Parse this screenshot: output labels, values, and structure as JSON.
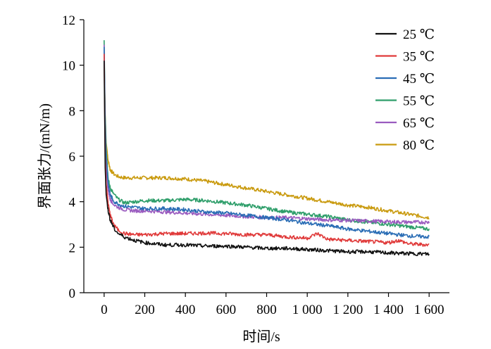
{
  "chart_data": {
    "type": "line",
    "title": "",
    "xlabel": "时间/s",
    "ylabel": "界面张力/(mN/m)",
    "xlim": [
      -100,
      1700
    ],
    "ylim": [
      0,
      12
    ],
    "x_ticks": [
      0,
      200,
      400,
      600,
      800,
      1000,
      1200,
      1400,
      1600
    ],
    "x_tick_labels": [
      "0",
      "200",
      "400",
      "600",
      "800",
      "1 000",
      "1 200",
      "1 400",
      "1 600"
    ],
    "y_ticks": [
      0,
      2,
      4,
      6,
      8,
      10,
      12
    ],
    "y_tick_labels": [
      "0",
      "2",
      "4",
      "6",
      "8",
      "10",
      "12"
    ],
    "grid": false,
    "legend_position": "top-right",
    "series": [
      {
        "name": "25 ℃",
        "color": "#111111",
        "x": [
          0,
          5,
          10,
          20,
          30,
          50,
          70,
          100,
          150,
          200,
          300,
          400,
          500,
          600,
          700,
          800,
          900,
          1000,
          1100,
          1200,
          1300,
          1400,
          1500,
          1600
        ],
        "y": [
          10.2,
          5.5,
          4.3,
          3.6,
          3.2,
          2.8,
          2.6,
          2.45,
          2.3,
          2.2,
          2.1,
          2.1,
          2.05,
          2.05,
          2.0,
          1.95,
          1.95,
          1.9,
          1.85,
          1.8,
          1.8,
          1.75,
          1.72,
          1.7
        ]
      },
      {
        "name": "35 ℃",
        "color": "#e03a3a",
        "x": [
          0,
          5,
          10,
          20,
          30,
          50,
          70,
          100,
          150,
          200,
          300,
          400,
          500,
          600,
          700,
          800,
          900,
          1000,
          1050,
          1100,
          1200,
          1300,
          1400,
          1450,
          1500,
          1600
        ],
        "y": [
          10.5,
          6.0,
          4.8,
          3.9,
          3.4,
          2.95,
          2.75,
          2.6,
          2.55,
          2.55,
          2.6,
          2.6,
          2.62,
          2.6,
          2.55,
          2.55,
          2.45,
          2.4,
          2.6,
          2.35,
          2.3,
          2.25,
          2.2,
          2.3,
          2.15,
          2.1
        ]
      },
      {
        "name": "45 ℃",
        "color": "#2a6db5",
        "x": [
          0,
          5,
          10,
          20,
          30,
          50,
          70,
          100,
          150,
          200,
          300,
          400,
          500,
          600,
          700,
          800,
          900,
          1000,
          1100,
          1200,
          1300,
          1400,
          1500,
          1600
        ],
        "y": [
          10.8,
          7.5,
          6.0,
          4.8,
          4.3,
          4.0,
          3.9,
          3.8,
          3.75,
          3.7,
          3.7,
          3.65,
          3.55,
          3.5,
          3.4,
          3.3,
          3.2,
          3.05,
          2.95,
          2.8,
          2.7,
          2.6,
          2.5,
          2.45
        ]
      },
      {
        "name": "55 ℃",
        "color": "#2e9e6a",
        "x": [
          0,
          5,
          10,
          20,
          30,
          50,
          70,
          100,
          150,
          200,
          300,
          400,
          500,
          600,
          700,
          800,
          900,
          1000,
          1100,
          1200,
          1300,
          1400,
          1500,
          1600
        ],
        "y": [
          11.1,
          7.8,
          6.3,
          5.0,
          4.6,
          4.3,
          4.1,
          3.95,
          4.0,
          4.05,
          4.05,
          4.1,
          4.05,
          3.95,
          3.85,
          3.7,
          3.55,
          3.45,
          3.35,
          3.2,
          3.1,
          3.0,
          2.9,
          2.8
        ]
      },
      {
        "name": "65 ℃",
        "color": "#9a5bbf",
        "x": [
          0,
          5,
          10,
          20,
          30,
          50,
          70,
          100,
          150,
          200,
          300,
          400,
          500,
          600,
          700,
          800,
          900,
          1000,
          1100,
          1200,
          1300,
          1400,
          1500,
          1600
        ],
        "y": [
          10.9,
          6.8,
          5.4,
          4.5,
          4.1,
          3.85,
          3.75,
          3.65,
          3.6,
          3.6,
          3.55,
          3.5,
          3.45,
          3.4,
          3.35,
          3.3,
          3.3,
          3.25,
          3.2,
          3.18,
          3.15,
          3.12,
          3.1,
          3.1
        ]
      },
      {
        "name": "80 ℃",
        "color": "#c99a0e",
        "x": [
          0,
          5,
          10,
          20,
          30,
          50,
          70,
          100,
          150,
          200,
          300,
          400,
          500,
          600,
          700,
          800,
          900,
          1000,
          1100,
          1200,
          1300,
          1400,
          1500,
          1600
        ],
        "y": [
          10.3,
          7.8,
          6.6,
          5.8,
          5.4,
          5.2,
          5.1,
          5.05,
          5.05,
          5.05,
          5.05,
          5.0,
          4.9,
          4.75,
          4.6,
          4.45,
          4.3,
          4.15,
          4.0,
          3.85,
          3.75,
          3.6,
          3.45,
          3.3
        ]
      }
    ]
  }
}
